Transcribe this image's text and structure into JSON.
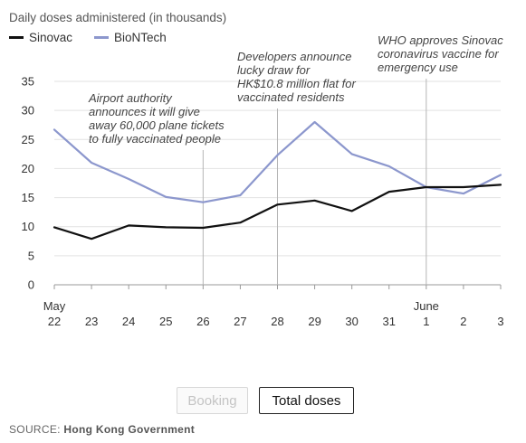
{
  "chart_data": {
    "type": "line",
    "title": "Daily doses administered (in thousands)",
    "x": [
      "May 22",
      "23",
      "24",
      "25",
      "26",
      "27",
      "28",
      "29",
      "30",
      "31",
      "June 1",
      "2",
      "3"
    ],
    "x_tick_labels": [
      {
        "top": "May",
        "bottom": "22"
      },
      {
        "top": "",
        "bottom": "23"
      },
      {
        "top": "",
        "bottom": "24"
      },
      {
        "top": "",
        "bottom": "25"
      },
      {
        "top": "",
        "bottom": "26"
      },
      {
        "top": "",
        "bottom": "27"
      },
      {
        "top": "",
        "bottom": "28"
      },
      {
        "top": "",
        "bottom": "29"
      },
      {
        "top": "",
        "bottom": "30"
      },
      {
        "top": "",
        "bottom": "31"
      },
      {
        "top": "June",
        "bottom": "1"
      },
      {
        "top": "",
        "bottom": "2"
      },
      {
        "top": "",
        "bottom": "3"
      }
    ],
    "y_ticks": [
      0,
      5,
      10,
      15,
      20,
      25,
      30,
      35
    ],
    "ylim": [
      0,
      35
    ],
    "grid": "horizontal",
    "legend_position": "top-left",
    "series": [
      {
        "name": "Sinovac",
        "color": "#111111",
        "values": [
          9.9,
          7.9,
          10.2,
          9.9,
          9.8,
          10.7,
          13.8,
          14.5,
          12.7,
          16.0,
          16.8,
          16.8,
          17.2
        ]
      },
      {
        "name": "BioNTech",
        "color": "#8c97cd",
        "values": [
          26.7,
          21.0,
          18.2,
          15.1,
          14.2,
          15.4,
          22.3,
          28.0,
          22.5,
          20.4,
          16.8,
          15.7,
          18.9
        ]
      }
    ],
    "annotations": [
      {
        "x_index": 4,
        "lines": [
          "Airport authority",
          "announces it will give",
          "away 60,000 plane tickets",
          "to fully vaccinated people"
        ]
      },
      {
        "x_index": 6,
        "lines": [
          "Developers announce",
          "lucky draw for",
          "HK$10.8 million flat for",
          "vaccinated residents"
        ]
      },
      {
        "x_index": 10,
        "lines": [
          "WHO approves Sinovac",
          "coronavirus vaccine for",
          "emergency use"
        ]
      }
    ]
  },
  "buttons": {
    "booking": "Booking",
    "total": "Total doses"
  },
  "source": {
    "label": "SOURCE:",
    "value": "Hong Kong Government"
  }
}
